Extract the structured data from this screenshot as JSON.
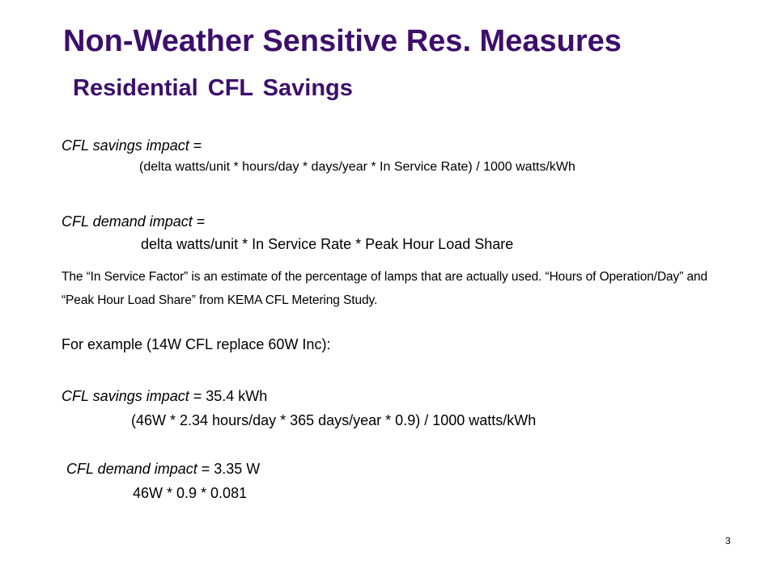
{
  "slide": {
    "title": "Non-Weather Sensitive Res. Measures",
    "subtitle": "Residential CFL Savings",
    "savings_formula": {
      "label": "CFL savings impact",
      "equals": " =",
      "expression": "(delta watts/unit * hours/day * days/year * In Service Rate) / 1000 watts/kWh"
    },
    "demand_formula": {
      "label": "CFL demand impact",
      "equals": " =",
      "expression": "delta watts/unit * In Service Rate * Peak Hour Load Share"
    },
    "note": "The “In Service Factor” is an estimate of the percentage of lamps that are actually used. “Hours of Operation/Day” and “Peak Hour Load Share” from KEMA CFL Metering Study.",
    "example_intro": "For example (14W CFL replace 60W Inc):",
    "example_savings": {
      "label": "CFL savings impact",
      "result": " = 35.4 kWh",
      "calculation": "(46W * 2.34 hours/day * 365 days/year * 0.9) / 1000 watts/kWh"
    },
    "example_demand": {
      "label": "CFL demand impact",
      "result": " = 3.35 W",
      "calculation": "46W * 0.9 * 0.081"
    },
    "page_number": "3"
  },
  "colors": {
    "title": "#3d0f6b",
    "text": "#000000",
    "background": "#ffffff"
  }
}
